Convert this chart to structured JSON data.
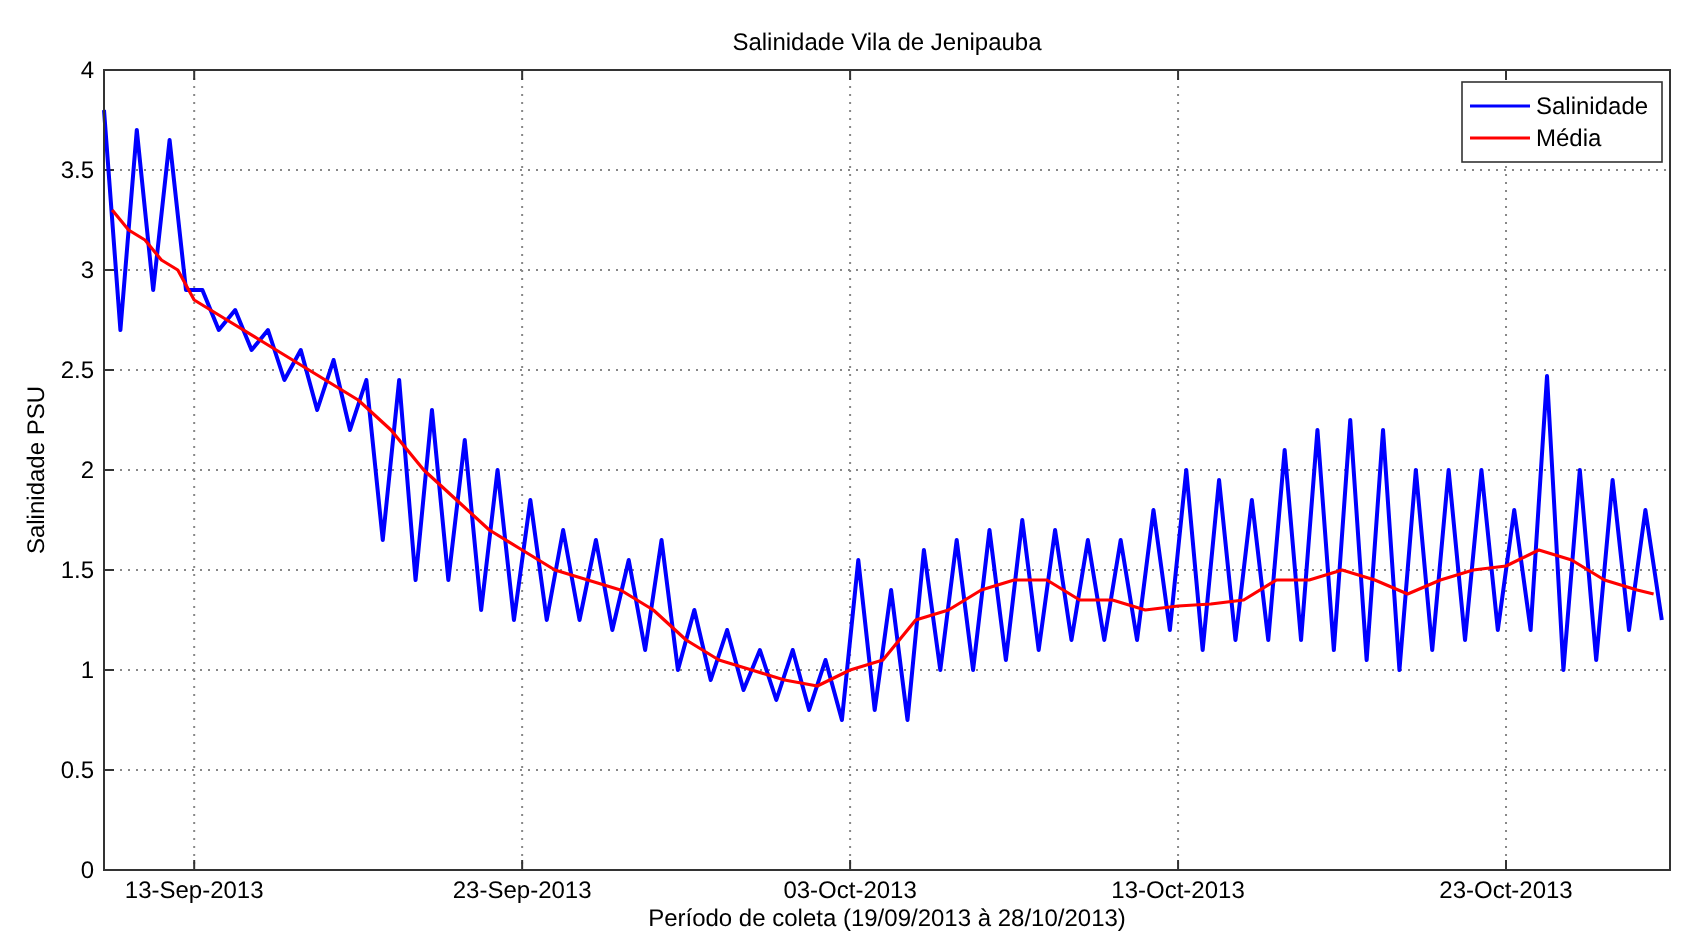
{
  "chart_data": {
    "type": "line",
    "title": "Salinidade Vila de Jenipauba",
    "xlabel": "Período de coleta (19/09/2013 à 28/10/2013)",
    "ylabel": "Salinidade PSU",
    "xlim": [
      "2013-09-10T06:00",
      "2013-10-28T00:00"
    ],
    "ylim": [
      0,
      4
    ],
    "xticks": [
      {
        "value": "2013-09-13",
        "label": "13-Sep-2013"
      },
      {
        "value": "2013-09-23",
        "label": "23-Sep-2013"
      },
      {
        "value": "2013-10-03",
        "label": "03-Oct-2013"
      },
      {
        "value": "2013-10-13",
        "label": "13-Oct-2013"
      },
      {
        "value": "2013-10-23",
        "label": "23-Oct-2013"
      }
    ],
    "yticks": [
      0,
      0.5,
      1,
      1.5,
      2,
      2.5,
      3,
      3.5,
      4
    ],
    "grid": true,
    "legend": "top right",
    "line_style": "solid",
    "marker": "none",
    "series": [
      {
        "name": "Salinidade",
        "color": "#0000ff",
        "x": [
          "2013-09-10T06:00",
          "2013-09-10T18:00",
          "2013-09-11T06:00",
          "2013-09-11T18:00",
          "2013-09-12T06:00",
          "2013-09-12T18:00",
          "2013-09-13T06:00",
          "2013-09-13T18:00",
          "2013-09-14T06:00",
          "2013-09-14T18:00",
          "2013-09-15T06:00",
          "2013-09-15T18:00",
          "2013-09-16T06:00",
          "2013-09-16T18:00",
          "2013-09-17T06:00",
          "2013-09-17T18:00",
          "2013-09-18T06:00",
          "2013-09-18T18:00",
          "2013-09-19T06:00",
          "2013-09-19T18:00",
          "2013-09-20T06:00",
          "2013-09-20T18:00",
          "2013-09-21T06:00",
          "2013-09-21T18:00",
          "2013-09-22T06:00",
          "2013-09-22T18:00",
          "2013-09-23T06:00",
          "2013-09-23T18:00",
          "2013-09-24T06:00",
          "2013-09-24T18:00",
          "2013-09-25T06:00",
          "2013-09-25T18:00",
          "2013-09-26T06:00",
          "2013-09-26T18:00",
          "2013-09-27T06:00",
          "2013-09-27T18:00",
          "2013-09-28T06:00",
          "2013-09-28T18:00",
          "2013-09-29T06:00",
          "2013-09-29T18:00",
          "2013-09-30T06:00",
          "2013-09-30T18:00",
          "2013-10-01T06:00",
          "2013-10-01T18:00",
          "2013-10-02T06:00",
          "2013-10-02T18:00",
          "2013-10-03T06:00",
          "2013-10-03T18:00",
          "2013-10-04T06:00",
          "2013-10-04T18:00",
          "2013-10-05T06:00",
          "2013-10-05T18:00",
          "2013-10-06T06:00",
          "2013-10-06T18:00",
          "2013-10-07T06:00",
          "2013-10-07T18:00",
          "2013-10-08T06:00",
          "2013-10-08T18:00",
          "2013-10-09T06:00",
          "2013-10-09T18:00",
          "2013-10-10T06:00",
          "2013-10-10T18:00",
          "2013-10-11T06:00",
          "2013-10-11T18:00",
          "2013-10-12T06:00",
          "2013-10-12T18:00",
          "2013-10-13T06:00",
          "2013-10-13T18:00",
          "2013-10-14T06:00",
          "2013-10-14T18:00",
          "2013-10-15T06:00",
          "2013-10-15T18:00",
          "2013-10-16T06:00",
          "2013-10-16T18:00",
          "2013-10-17T06:00",
          "2013-10-17T18:00",
          "2013-10-18T06:00",
          "2013-10-18T18:00",
          "2013-10-19T06:00",
          "2013-10-19T18:00",
          "2013-10-20T06:00",
          "2013-10-20T18:00",
          "2013-10-21T06:00",
          "2013-10-21T18:00",
          "2013-10-22T06:00",
          "2013-10-22T18:00",
          "2013-10-23T06:00",
          "2013-10-23T18:00",
          "2013-10-24T06:00",
          "2013-10-24T18:00",
          "2013-10-25T06:00",
          "2013-10-25T18:00",
          "2013-10-26T06:00",
          "2013-10-26T18:00",
          "2013-10-27T06:00",
          "2013-10-27T18:00"
        ],
        "values": [
          3.8,
          2.7,
          3.7,
          2.9,
          3.65,
          2.9,
          2.9,
          2.7,
          2.8,
          2.6,
          2.7,
          2.45,
          2.6,
          2.3,
          2.55,
          2.2,
          2.45,
          1.65,
          2.45,
          1.45,
          2.3,
          1.45,
          2.15,
          1.3,
          2.0,
          1.25,
          1.85,
          1.25,
          1.7,
          1.25,
          1.65,
          1.2,
          1.55,
          1.1,
          1.65,
          1.0,
          1.3,
          0.95,
          1.2,
          0.9,
          1.1,
          0.85,
          1.1,
          0.8,
          1.05,
          0.75,
          1.55,
          0.8,
          1.4,
          0.75,
          1.6,
          1.0,
          1.65,
          1.0,
          1.7,
          1.05,
          1.75,
          1.1,
          1.7,
          1.15,
          1.65,
          1.15,
          1.65,
          1.15,
          1.8,
          1.2,
          2.0,
          1.1,
          1.95,
          1.15,
          1.85,
          1.15,
          2.1,
          1.15,
          2.2,
          1.1,
          2.25,
          1.05,
          2.2,
          1.0,
          2.0,
          1.1,
          2.0,
          1.15,
          2.0,
          1.2,
          1.8,
          1.2,
          2.47,
          1.0,
          2.0,
          1.05,
          1.95,
          1.2,
          1.8,
          1.25
        ]
      },
      {
        "name": "Média",
        "color": "#ff0000",
        "x": [
          "2013-09-10T12:00",
          "2013-09-11T00:00",
          "2013-09-11T12:00",
          "2013-09-12T00:00",
          "2013-09-12T12:00",
          "2013-09-13T00:00",
          "2013-09-14T00:00",
          "2013-09-15T00:00",
          "2013-09-16T00:00",
          "2013-09-17T00:00",
          "2013-09-18T00:00",
          "2013-09-19T00:00",
          "2013-09-20T00:00",
          "2013-09-21T00:00",
          "2013-09-22T00:00",
          "2013-09-23T00:00",
          "2013-09-24T00:00",
          "2013-09-25T00:00",
          "2013-09-26T00:00",
          "2013-09-27T00:00",
          "2013-09-28T00:00",
          "2013-09-29T00:00",
          "2013-09-30T00:00",
          "2013-10-01T00:00",
          "2013-10-02T00:00",
          "2013-10-03T00:00",
          "2013-10-04T00:00",
          "2013-10-05T00:00",
          "2013-10-06T00:00",
          "2013-10-07T00:00",
          "2013-10-08T00:00",
          "2013-10-09T00:00",
          "2013-10-10T00:00",
          "2013-10-11T00:00",
          "2013-10-12T00:00",
          "2013-10-13T00:00",
          "2013-10-14T00:00",
          "2013-10-15T00:00",
          "2013-10-16T00:00",
          "2013-10-17T00:00",
          "2013-10-18T00:00",
          "2013-10-19T00:00",
          "2013-10-20T00:00",
          "2013-10-21T00:00",
          "2013-10-22T00:00",
          "2013-10-23T00:00",
          "2013-10-24T00:00",
          "2013-10-25T00:00",
          "2013-10-26T00:00",
          "2013-10-27T00:00",
          "2013-10-27T12:00"
        ],
        "values": [
          3.3,
          3.2,
          3.15,
          3.05,
          3.0,
          2.85,
          2.75,
          2.65,
          2.55,
          2.45,
          2.35,
          2.2,
          2.0,
          1.85,
          1.7,
          1.6,
          1.5,
          1.45,
          1.4,
          1.3,
          1.15,
          1.05,
          1.0,
          0.95,
          0.92,
          1.0,
          1.05,
          1.25,
          1.3,
          1.4,
          1.45,
          1.45,
          1.35,
          1.35,
          1.3,
          1.32,
          1.33,
          1.35,
          1.45,
          1.45,
          1.5,
          1.45,
          1.38,
          1.45,
          1.5,
          1.52,
          1.6,
          1.55,
          1.45,
          1.4,
          1.38
        ]
      }
    ]
  }
}
